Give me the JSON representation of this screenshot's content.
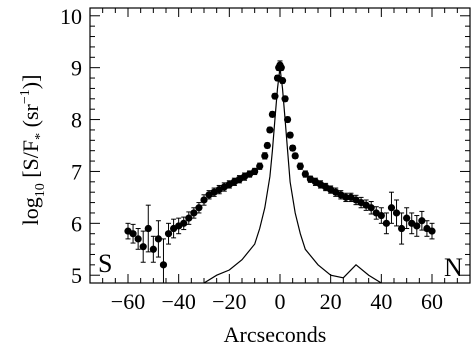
{
  "chart_data": {
    "type": "scatter",
    "xlabel": "Arcseconds",
    "ylabel_parts": {
      "main": "log",
      "sub": "10",
      "open": " [S/F",
      "star": "*",
      "unit_open": " (sr",
      "exp": "−1",
      "close": ")]"
    },
    "xlim": [
      -75,
      75
    ],
    "ylim": [
      4.85,
      10.15
    ],
    "xticks": [
      -60,
      -40,
      -20,
      0,
      20,
      40,
      60
    ],
    "xtick_labels": [
      "−60",
      "−40",
      "−20",
      "0",
      "20",
      "40",
      "60"
    ],
    "yticks": [
      5,
      6,
      7,
      8,
      9,
      10
    ],
    "ytick_labels": [
      "5",
      "6",
      "7",
      "8",
      "9",
      "10"
    ],
    "corner_labels": {
      "left": "S",
      "right": "N"
    },
    "grid": false,
    "series": [
      {
        "style": "points-with-errorbars",
        "x": [
          -60,
          -58,
          -56,
          -54,
          -52,
          -50,
          -48,
          -46,
          -44,
          -42,
          -40,
          -38,
          -36,
          -34,
          -32,
          -30,
          -28,
          -26,
          -24,
          -22,
          -20,
          -18,
          -16,
          -14,
          -12,
          -10,
          -8,
          -6,
          -5,
          -4,
          -3,
          -2,
          -1,
          -0.5,
          0,
          0.5,
          1,
          2,
          3,
          4,
          5,
          6,
          8,
          10,
          12,
          14,
          16,
          18,
          20,
          22,
          24,
          26,
          28,
          30,
          32,
          34,
          36,
          38,
          40,
          42,
          44,
          46,
          48,
          50,
          52,
          54,
          56,
          58,
          60
        ],
        "y": [
          5.85,
          5.8,
          5.7,
          5.55,
          5.9,
          5.5,
          5.7,
          5.2,
          5.8,
          5.9,
          5.95,
          6.0,
          6.1,
          6.2,
          6.3,
          6.45,
          6.55,
          6.6,
          6.65,
          6.7,
          6.75,
          6.8,
          6.85,
          6.9,
          6.95,
          7.0,
          7.1,
          7.3,
          7.5,
          7.8,
          8.1,
          8.45,
          8.8,
          9.0,
          9.05,
          9.0,
          8.75,
          8.4,
          8.0,
          7.7,
          7.45,
          7.3,
          7.1,
          6.95,
          6.85,
          6.8,
          6.75,
          6.7,
          6.65,
          6.6,
          6.55,
          6.5,
          6.5,
          6.45,
          6.4,
          6.35,
          6.3,
          6.2,
          6.15,
          6.0,
          6.3,
          6.2,
          5.9,
          6.1,
          6.0,
          5.95,
          6.05,
          5.9,
          5.85
        ],
        "yerr": [
          0.15,
          0.18,
          0.2,
          0.3,
          0.45,
          0.25,
          0.35,
          0.5,
          0.2,
          0.18,
          0.15,
          0.12,
          0.12,
          0.1,
          0.1,
          0.1,
          0.08,
          0.08,
          0.08,
          0.08,
          0.07,
          0.07,
          0.07,
          0.07,
          0.06,
          0.06,
          0.06,
          0.06,
          0.05,
          0.05,
          0.05,
          0.05,
          0.05,
          0.05,
          0.08,
          0.05,
          0.05,
          0.05,
          0.05,
          0.05,
          0.05,
          0.05,
          0.06,
          0.06,
          0.06,
          0.07,
          0.07,
          0.07,
          0.07,
          0.08,
          0.08,
          0.08,
          0.08,
          0.09,
          0.1,
          0.1,
          0.12,
          0.12,
          0.15,
          0.2,
          0.3,
          0.25,
          0.3,
          0.2,
          0.2,
          0.2,
          0.18,
          0.15,
          0.15
        ]
      },
      {
        "style": "line",
        "x": [
          -30,
          -25,
          -20,
          -15,
          -10,
          -8,
          -6,
          -4,
          -3,
          -2,
          -1,
          0,
          1,
          2,
          3,
          4,
          6,
          8,
          10,
          15,
          20,
          25,
          30,
          35,
          40
        ],
        "y": [
          4.85,
          5.0,
          5.1,
          5.3,
          5.6,
          5.9,
          6.3,
          6.9,
          7.4,
          8.0,
          8.6,
          9.0,
          8.6,
          8.0,
          7.4,
          6.8,
          6.2,
          5.8,
          5.5,
          5.2,
          5.0,
          4.95,
          5.2,
          5.0,
          4.85
        ]
      }
    ]
  }
}
